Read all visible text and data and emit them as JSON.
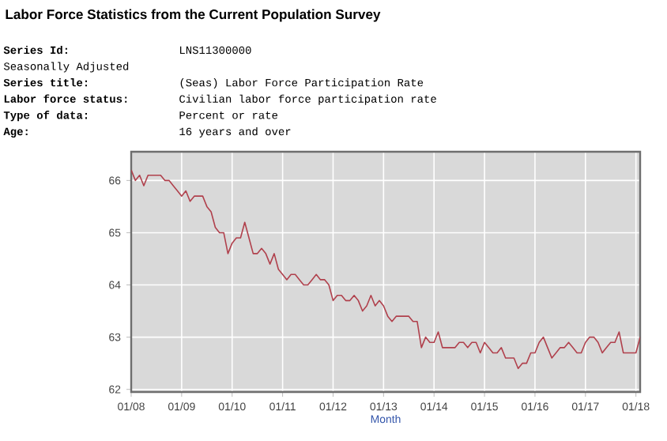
{
  "chart_data": {
    "type": "line",
    "title": "Labor Force Statistics from the Current Population Survey",
    "annotations": [
      "Series Id:",
      "LNS11300000",
      "Seasonally Adjusted",
      "Series title:",
      "(Seas) Labor Force Participation Rate",
      "Labor force status:",
      "Civilian labor force participation rate",
      "Type of data:",
      "Percent or rate",
      "Age:",
      "16 years and over"
    ],
    "xlabel": "Month",
    "x": [
      "2008-01",
      "2008-02",
      "2008-03",
      "2008-04",
      "2008-05",
      "2008-06",
      "2008-07",
      "2008-08",
      "2008-09",
      "2008-10",
      "2008-11",
      "2008-12",
      "2009-01",
      "2009-02",
      "2009-03",
      "2009-04",
      "2009-05",
      "2009-06",
      "2009-07",
      "2009-08",
      "2009-09",
      "2009-10",
      "2009-11",
      "2009-12",
      "2010-01",
      "2010-02",
      "2010-03",
      "2010-04",
      "2010-05",
      "2010-06",
      "2010-07",
      "2010-08",
      "2010-09",
      "2010-10",
      "2010-11",
      "2010-12",
      "2011-01",
      "2011-02",
      "2011-03",
      "2011-04",
      "2011-05",
      "2011-06",
      "2011-07",
      "2011-08",
      "2011-09",
      "2011-10",
      "2011-11",
      "2011-12",
      "2012-01",
      "2012-02",
      "2012-03",
      "2012-04",
      "2012-05",
      "2012-06",
      "2012-07",
      "2012-08",
      "2012-09",
      "2012-10",
      "2012-11",
      "2012-12",
      "2013-01",
      "2013-02",
      "2013-03",
      "2013-04",
      "2013-05",
      "2013-06",
      "2013-07",
      "2013-08",
      "2013-09",
      "2013-10",
      "2013-11",
      "2013-12",
      "2014-01",
      "2014-02",
      "2014-03",
      "2014-04",
      "2014-05",
      "2014-06",
      "2014-07",
      "2014-08",
      "2014-09",
      "2014-10",
      "2014-11",
      "2014-12",
      "2015-01",
      "2015-02",
      "2015-03",
      "2015-04",
      "2015-05",
      "2015-06",
      "2015-07",
      "2015-08",
      "2015-09",
      "2015-10",
      "2015-11",
      "2015-12",
      "2016-01",
      "2016-02",
      "2016-03",
      "2016-04",
      "2016-05",
      "2016-06",
      "2016-07",
      "2016-08",
      "2016-09",
      "2016-10",
      "2016-11",
      "2016-12",
      "2017-01",
      "2017-02",
      "2017-03",
      "2017-04",
      "2017-05",
      "2017-06",
      "2017-07",
      "2017-08",
      "2017-09",
      "2017-10",
      "2017-11",
      "2017-12",
      "2018-01",
      "2018-02"
    ],
    "series": [
      {
        "color": "#b0404c",
        "values": [
          66.2,
          66.0,
          66.1,
          65.9,
          66.1,
          66.1,
          66.1,
          66.1,
          66.0,
          66.0,
          65.9,
          65.8,
          65.7,
          65.8,
          65.6,
          65.7,
          65.7,
          65.7,
          65.5,
          65.4,
          65.1,
          65.0,
          65.0,
          64.6,
          64.8,
          64.9,
          64.9,
          65.2,
          64.9,
          64.6,
          64.6,
          64.7,
          64.6,
          64.4,
          64.6,
          64.3,
          64.2,
          64.1,
          64.2,
          64.2,
          64.1,
          64.0,
          64.0,
          64.1,
          64.2,
          64.1,
          64.1,
          64.0,
          63.7,
          63.8,
          63.8,
          63.7,
          63.7,
          63.8,
          63.7,
          63.5,
          63.6,
          63.8,
          63.6,
          63.7,
          63.6,
          63.4,
          63.3,
          63.4,
          63.4,
          63.4,
          63.4,
          63.3,
          63.3,
          62.8,
          63.0,
          62.9,
          62.9,
          63.1,
          62.8,
          62.8,
          62.8,
          62.8,
          62.9,
          62.9,
          62.8,
          62.9,
          62.9,
          62.7,
          62.9,
          62.8,
          62.7,
          62.7,
          62.8,
          62.6,
          62.6,
          62.6,
          62.4,
          62.5,
          62.5,
          62.7,
          62.7,
          62.9,
          63.0,
          62.8,
          62.6,
          62.7,
          62.8,
          62.8,
          62.9,
          62.8,
          62.7,
          62.7,
          62.9,
          63.0,
          63.0,
          62.9,
          62.7,
          62.8,
          62.9,
          62.9,
          63.1,
          62.7,
          62.7,
          62.7,
          62.7,
          63.0
        ]
      }
    ],
    "xlim": [
      "2008-01",
      "2018-02"
    ],
    "xticks": [
      {
        "value": "2008-01",
        "label": "01/08"
      },
      {
        "value": "2009-01",
        "label": "01/09"
      },
      {
        "value": "2010-01",
        "label": "01/10"
      },
      {
        "value": "2011-01",
        "label": "01/11"
      },
      {
        "value": "2012-01",
        "label": "01/12"
      },
      {
        "value": "2013-01",
        "label": "01/13"
      },
      {
        "value": "2014-01",
        "label": "01/14"
      },
      {
        "value": "2015-01",
        "label": "01/15"
      },
      {
        "value": "2016-01",
        "label": "01/16"
      },
      {
        "value": "2017-01",
        "label": "01/17"
      },
      {
        "value": "2018-01",
        "label": "01/18"
      }
    ],
    "ylim": [
      61.95,
      66.55
    ],
    "yticks": [
      62,
      63,
      64,
      65,
      66
    ],
    "grid": true,
    "marker": "none",
    "line_style": "solid"
  }
}
